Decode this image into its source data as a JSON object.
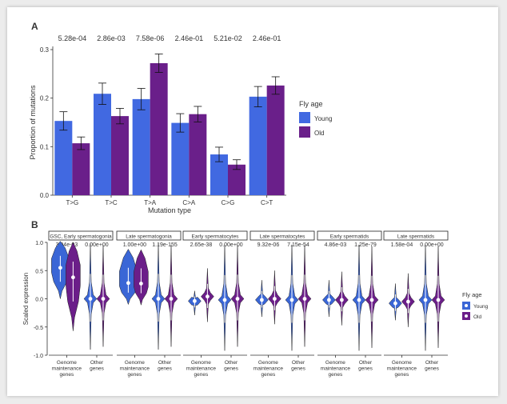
{
  "panel_a": {
    "label": "A",
    "chart_data": {
      "type": "bar",
      "xlabel": "Mutation type",
      "ylabel": "Proportion of mutations",
      "ylim": [
        0,
        0.3
      ],
      "yticks": [
        "0.0",
        "0.1",
        "0.2",
        "0.3"
      ],
      "categories": [
        "T>G",
        "T>C",
        "T>A",
        "C>A",
        "C>G",
        "C>T"
      ],
      "pvalues": [
        "5.28e-04",
        "2.86e-03",
        "7.58e-06",
        "2.46e-01",
        "5.21e-02",
        "2.46e-01"
      ],
      "series": [
        {
          "name": "Young",
          "values": [
            0.153,
            0.209,
            0.198,
            0.149,
            0.084,
            0.203
          ],
          "err": [
            0.019,
            0.022,
            0.022,
            0.019,
            0.015,
            0.021
          ]
        },
        {
          "name": "Old",
          "values": [
            0.107,
            0.163,
            0.272,
            0.167,
            0.063,
            0.226
          ],
          "err": [
            0.013,
            0.016,
            0.019,
            0.016,
            0.01,
            0.018
          ]
        }
      ],
      "legend": {
        "title": "Fly age",
        "position": "right"
      },
      "grid": false
    }
  },
  "panel_b": {
    "label": "B",
    "chart_data": {
      "type": "violin",
      "ylabel": "Scaled expression",
      "ylim": [
        -1.0,
        1.0
      ],
      "yticks": [
        "-1.0",
        "-0.5",
        "0.0",
        "0.5",
        "1.0"
      ],
      "categories": [
        "Genome maintenance genes",
        "Other genes"
      ],
      "facets": [
        {
          "title": "GSC, Early spermatogonia",
          "pvalues": [
            "3.04e-03",
            "0.00e+00"
          ],
          "medians": {
            "young": [
              0.55,
              0.0
            ],
            "old": [
              0.38,
              0.0
            ]
          }
        },
        {
          "title": "Late spermatogonia",
          "pvalues": [
            "1.00e+00",
            "1.19e-155"
          ],
          "medians": {
            "young": [
              0.28,
              0.0
            ],
            "old": [
              0.27,
              0.0
            ]
          }
        },
        {
          "title": "Early spermatocytes",
          "pvalues": [
            "2.65e-38",
            "0.00e+00"
          ],
          "medians": {
            "young": [
              -0.04,
              -0.02
            ],
            "old": [
              0.04,
              0.0
            ]
          }
        },
        {
          "title": "Late spermatocytes",
          "pvalues": [
            "9.32e-06",
            "7.15e-54"
          ],
          "medians": {
            "young": [
              -0.02,
              -0.02
            ],
            "old": [
              0.0,
              0.0
            ]
          }
        },
        {
          "title": "Early spermatids",
          "pvalues": [
            "4.86e-03",
            "1.25e-79"
          ],
          "medians": {
            "young": [
              -0.02,
              -0.02
            ],
            "old": [
              -0.02,
              -0.02
            ]
          }
        },
        {
          "title": "Late spermatids",
          "pvalues": [
            "1.58e-04",
            "0.00e+00"
          ],
          "medians": {
            "young": [
              -0.08,
              -0.02
            ],
            "old": [
              -0.05,
              -0.02
            ]
          }
        }
      ],
      "legend": {
        "title": "Fly age",
        "position": "right"
      }
    }
  },
  "legend": {
    "title": "Fly age",
    "young": "Young",
    "old": "Old"
  },
  "colors": {
    "young": "#4169e1",
    "old": "#6a1f8a",
    "young_violin": "#3a66d6",
    "old_violin": "#6b1e89",
    "axis": "#333333"
  }
}
